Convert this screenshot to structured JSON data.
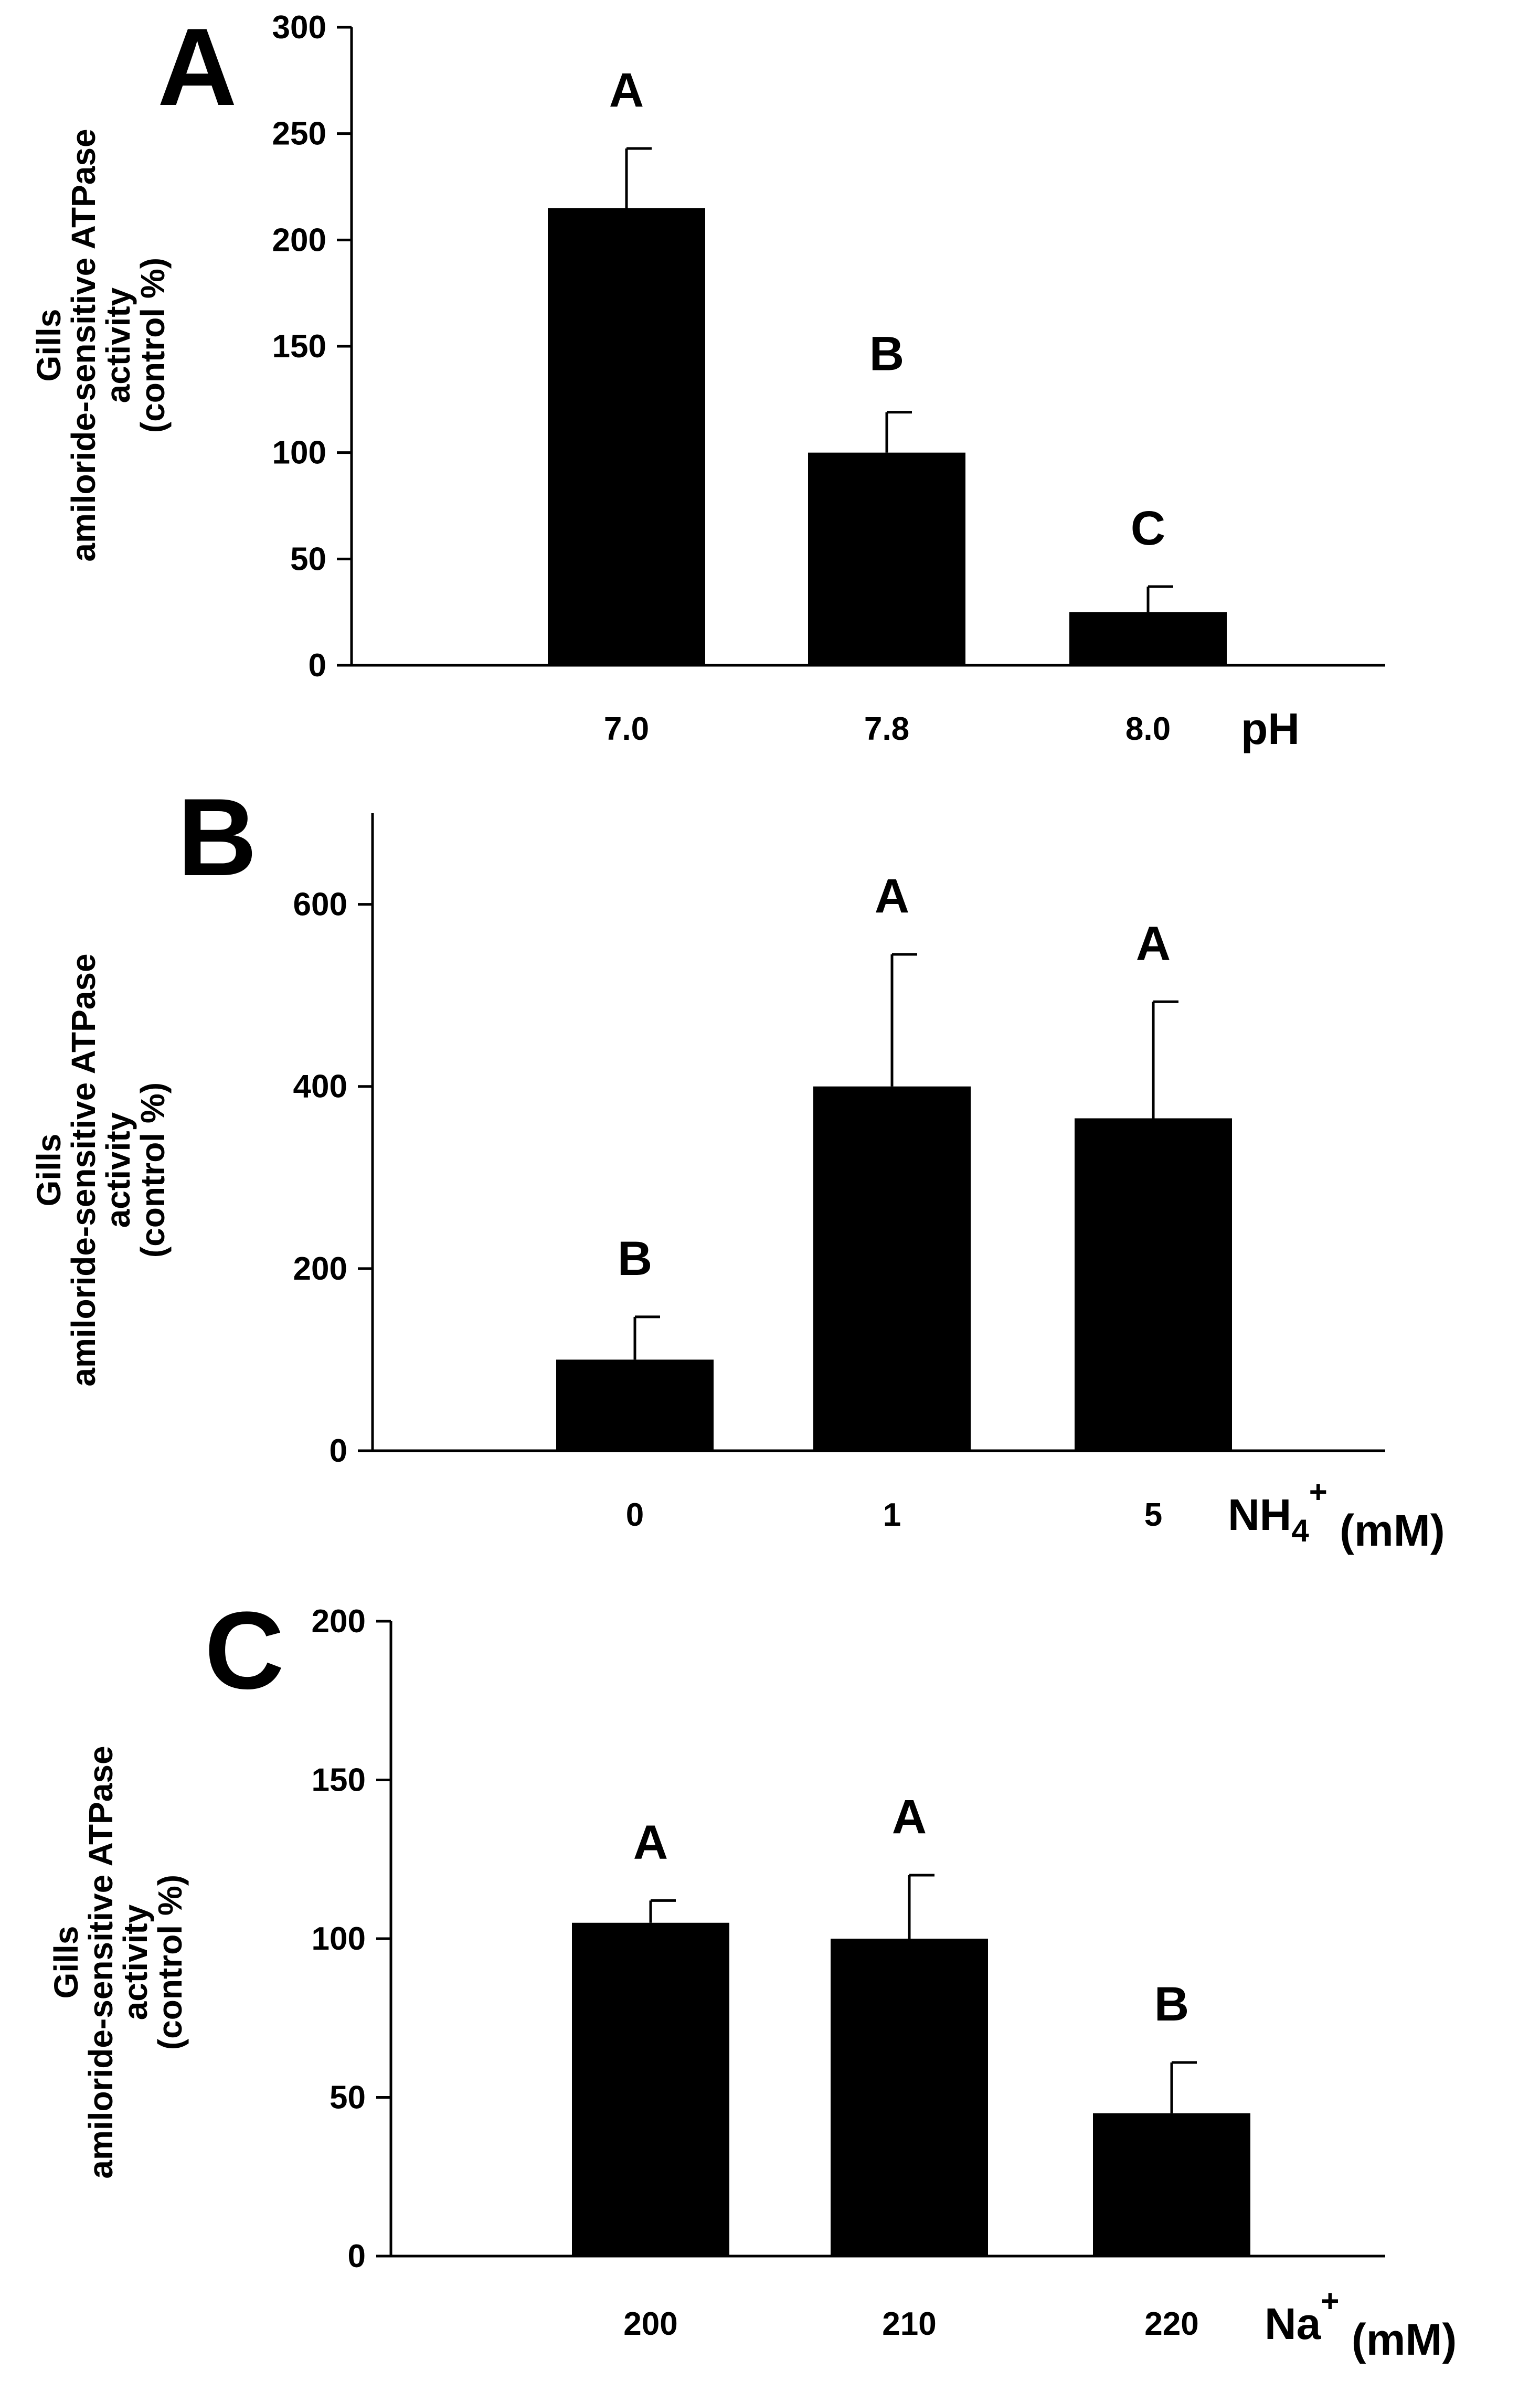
{
  "figure": {
    "background": "#ffffff",
    "bar_color": "#000000"
  },
  "chart_data": [
    {
      "type": "bar",
      "panel_label": "A",
      "title": "",
      "ylabel_lines": [
        "Gills",
        "amiloride-sensitive ATPase",
        "activity",
        "(control %)"
      ],
      "xlabel": "pH",
      "xlabel_sub": "",
      "xlabel_sup": "",
      "xlabel_suffix": "",
      "categories": [
        "7.0",
        "7.8",
        "8.0"
      ],
      "values": [
        215,
        100,
        25
      ],
      "errors": [
        28,
        19,
        12
      ],
      "significance": [
        "A",
        "B",
        "C"
      ],
      "ylim": [
        0,
        300
      ],
      "yticks": [
        0,
        50,
        100,
        150,
        200,
        250,
        300
      ],
      "grid": false
    },
    {
      "type": "bar",
      "panel_label": "B",
      "title": "",
      "ylabel_lines": [
        "Gills",
        "amiloride-sensitive ATPase",
        "activity",
        "(control %)"
      ],
      "xlabel": "NH",
      "xlabel_sub": "4",
      "xlabel_sup": "+",
      "xlabel_suffix": " (mM)",
      "categories": [
        "0",
        "1",
        "5"
      ],
      "values": [
        100,
        400,
        365
      ],
      "errors": [
        47,
        145,
        128
      ],
      "significance": [
        "B",
        "A",
        "A"
      ],
      "ylim": [
        0,
        700
      ],
      "yticks": [
        0,
        200,
        400,
        600
      ],
      "grid": false
    },
    {
      "type": "bar",
      "panel_label": "C",
      "title": "",
      "ylabel_lines": [
        "Gills",
        "amiloride-sensitive ATPase",
        "activity",
        "(control %)"
      ],
      "xlabel": "Na",
      "xlabel_sub": "",
      "xlabel_sup": "+",
      "xlabel_suffix": " (mM)",
      "categories": [
        "200",
        "210",
        "220"
      ],
      "values": [
        105,
        100,
        45
      ],
      "errors": [
        7,
        20,
        16
      ],
      "significance": [
        "A",
        "A",
        "B"
      ],
      "ylim": [
        0,
        200
      ],
      "yticks": [
        0,
        50,
        100,
        150,
        200
      ],
      "grid": false
    }
  ]
}
